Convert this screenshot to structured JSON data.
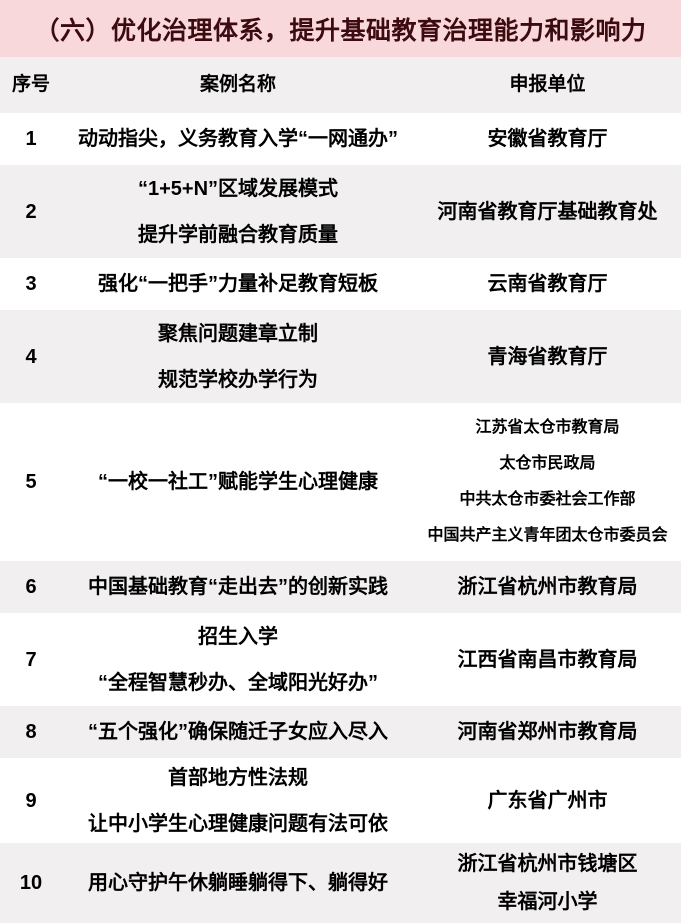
{
  "page": {
    "title": "（六）优化治理体系，提升基础教育治理能力和影响力"
  },
  "table": {
    "columns": [
      "序号",
      "案例名称",
      "申报单位"
    ],
    "rows": [
      {
        "num": "1",
        "name": [
          "动动指尖，义务教育入学“一网通办”"
        ],
        "unit": [
          "安徽省教育厅"
        ]
      },
      {
        "num": "2",
        "name": [
          "“1+5+N”区域发展模式",
          "提升学前融合教育质量"
        ],
        "unit": [
          "河南省教育厅基础教育处"
        ]
      },
      {
        "num": "3",
        "name": [
          "强化“一把手”力量补足教育短板"
        ],
        "unit": [
          "云南省教育厅"
        ]
      },
      {
        "num": "4",
        "name": [
          "聚焦问题建章立制",
          "规范学校办学行为"
        ],
        "unit": [
          "青海省教育厅"
        ]
      },
      {
        "num": "5",
        "name": [
          "“一校一社工”赋能学生心理健康"
        ],
        "unit": [
          "江苏省太仓市教育局",
          "太仓市民政局",
          "中共太仓市委社会工作部",
          "中国共产主义青年团太仓市委员会"
        ]
      },
      {
        "num": "6",
        "name": [
          "中国基础教育“走出去”的创新实践"
        ],
        "unit": [
          "浙江省杭州市教育局"
        ]
      },
      {
        "num": "7",
        "name": [
          "招生入学",
          "“全程智慧秒办、全域阳光好办”"
        ],
        "unit": [
          "江西省南昌市教育局"
        ]
      },
      {
        "num": "8",
        "name": [
          "“五个强化”确保随迁子女应入尽入"
        ],
        "unit": [
          "河南省郑州市教育局"
        ]
      },
      {
        "num": "9",
        "name": [
          "首部地方性法规",
          "让中小学生心理健康问题有法可依"
        ],
        "unit": [
          "广东省广州市"
        ]
      },
      {
        "num": "10",
        "name": [
          "用心守护午休躺睡躺得下、躺得好"
        ],
        "unit": [
          "浙江省杭州市钱塘区",
          "幸福河小学"
        ]
      }
    ]
  },
  "colors": {
    "title_bg": "#f8d8da",
    "title_text": "#3b0b10",
    "row_alt_bg": "#f1efef",
    "row_bg": "#ffffff",
    "body_text": "#000000"
  }
}
